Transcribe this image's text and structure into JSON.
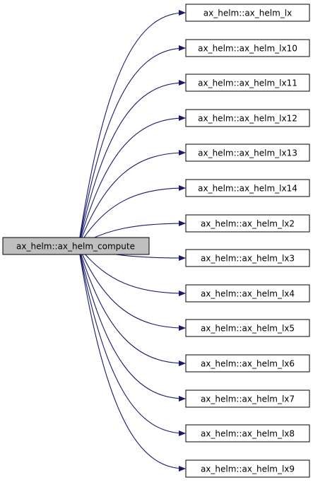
{
  "graph": {
    "root": {
      "label": "ax_helm::ax_helm_compute",
      "fill": "#bfbfbf"
    },
    "callees": [
      {
        "label": "ax_helm::ax_helm_lx"
      },
      {
        "label": "ax_helm::ax_helm_lx10"
      },
      {
        "label": "ax_helm::ax_helm_lx11"
      },
      {
        "label": "ax_helm::ax_helm_lx12"
      },
      {
        "label": "ax_helm::ax_helm_lx13"
      },
      {
        "label": "ax_helm::ax_helm_lx14"
      },
      {
        "label": "ax_helm::ax_helm_lx2"
      },
      {
        "label": "ax_helm::ax_helm_lx3"
      },
      {
        "label": "ax_helm::ax_helm_lx4"
      },
      {
        "label": "ax_helm::ax_helm_lx5"
      },
      {
        "label": "ax_helm::ax_helm_lx6"
      },
      {
        "label": "ax_helm::ax_helm_lx7"
      },
      {
        "label": "ax_helm::ax_helm_lx8"
      },
      {
        "label": "ax_helm::ax_helm_lx9"
      }
    ],
    "colors": {
      "edge": "#191970",
      "node_fill": "#ffffff",
      "node_stroke": "#000000"
    }
  }
}
